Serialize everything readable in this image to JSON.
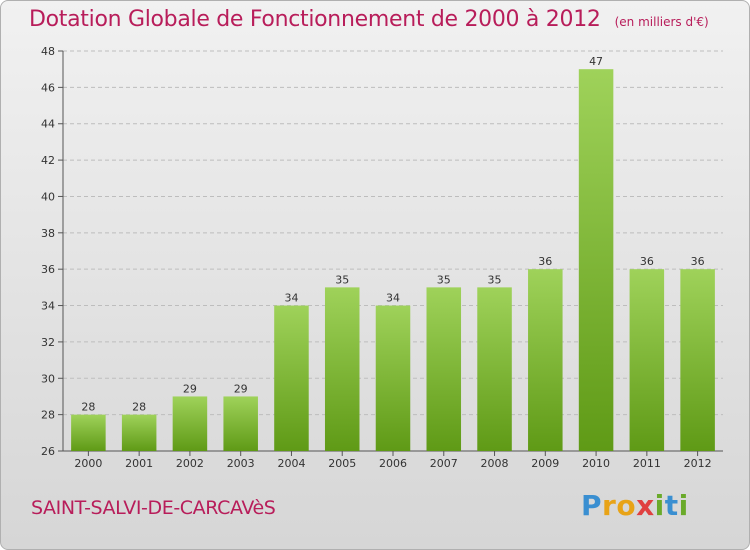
{
  "header": {
    "title": "Dotation Globale de Fonctionnement de 2000 à 2012",
    "subtitle": "(en milliers d'€)"
  },
  "footer": {
    "commune": "SAINT-SALVI-DE-CARCAVèS",
    "logo_letters": [
      "P",
      "r",
      "o",
      "x",
      "i",
      "t",
      "i"
    ]
  },
  "colors": {
    "title": "#b81d5a",
    "bar_light": "#9fd25a",
    "bar_dark": "#5f9a16",
    "grid": "#bdbdbd"
  },
  "chart_data": {
    "type": "bar",
    "categories": [
      "2000",
      "2001",
      "2002",
      "2003",
      "2004",
      "2005",
      "2006",
      "2007",
      "2008",
      "2009",
      "2010",
      "2011",
      "2012"
    ],
    "values": [
      28,
      28,
      29,
      29,
      34,
      35,
      34,
      35,
      35,
      36,
      47,
      36,
      36
    ],
    "ylim": [
      26,
      48
    ],
    "yticks": [
      26,
      28,
      30,
      32,
      34,
      36,
      38,
      40,
      42,
      44,
      46,
      48
    ],
    "grid": true,
    "data_labels": true
  }
}
